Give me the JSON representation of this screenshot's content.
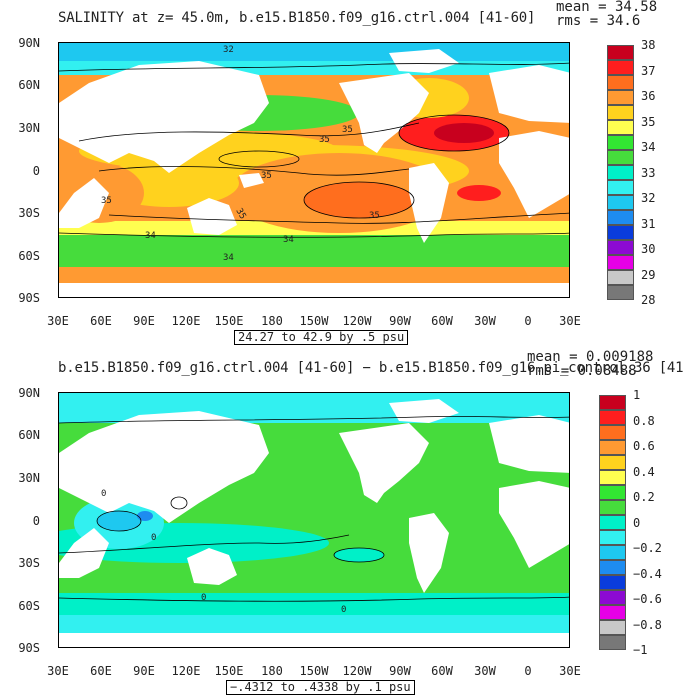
{
  "top": {
    "title": "SALINITY at z=  45.0m, b.e15.B1850.f09_g16.ctrl.004 [41-60]",
    "mean_text": "mean = 34.58",
    "rms_text": "rms = 34.6",
    "caption": "24.27 to 42.9 by .5 psu",
    "y_labels": [
      "90N",
      "60N",
      "30N",
      "0",
      "30S",
      "60S",
      "90S"
    ],
    "x_labels": [
      "30E",
      "60E",
      "90E",
      "120E",
      "150E",
      "180",
      "150W",
      "120W",
      "90W",
      "60W",
      "30W",
      "0",
      "30E"
    ],
    "contour_labels": [
      "32",
      "35",
      "35",
      "35",
      "35",
      "35",
      "35",
      "34",
      "34",
      "34"
    ],
    "colorbar": {
      "labels": [
        "38",
        "37",
        "36",
        "35",
        "34",
        "33",
        "32",
        "31",
        "30",
        "29",
        "28"
      ],
      "colors": [
        "#c8001e",
        "#ff1e1e",
        "#ff6e1e",
        "#ff9a32",
        "#ffd21e",
        "#ffff50",
        "#32e632",
        "#46dc3c",
        "#00f0c8",
        "#32f0f0",
        "#1ec8f0",
        "#1e8cf0",
        "#0a3cdc",
        "#8c0ad2",
        "#e600e6",
        "#c8c8c8",
        "#787878"
      ]
    }
  },
  "bottom": {
    "title": "b.e15.B1850.f09_g16.ctrl.004 [41-60] − b.e15.B1850.f09_g16.pi_control.36 [41",
    "mean_text": "mean = 0.009188",
    "rms_text": "rms = 0.08488",
    "caption": "−.4312 to .4338 by .1 psu",
    "y_labels": [
      "90N",
      "60N",
      "30N",
      "0",
      "30S",
      "60S",
      "90S"
    ],
    "x_labels": [
      "30E",
      "60E",
      "90E",
      "120E",
      "150E",
      "180",
      "150W",
      "120W",
      "90W",
      "60W",
      "30W",
      "0",
      "30E"
    ],
    "contour_labels": [
      "0",
      "0",
      "0",
      "0"
    ],
    "colorbar": {
      "labels": [
        "1",
        "0.8",
        "0.6",
        "0.4",
        "0.2",
        "0",
        "−0.2",
        "−0.4",
        "−0.6",
        "−0.8",
        "−1"
      ],
      "colors": [
        "#c8001e",
        "#ff1e1e",
        "#ff6e1e",
        "#ff9a32",
        "#ffd21e",
        "#ffff50",
        "#32e632",
        "#46dc3c",
        "#00f0c8",
        "#32f0f0",
        "#1ec8f0",
        "#1e8cf0",
        "#0a3cdc",
        "#8c0ad2",
        "#e600e6",
        "#c8c8c8",
        "#787878"
      ]
    }
  }
}
